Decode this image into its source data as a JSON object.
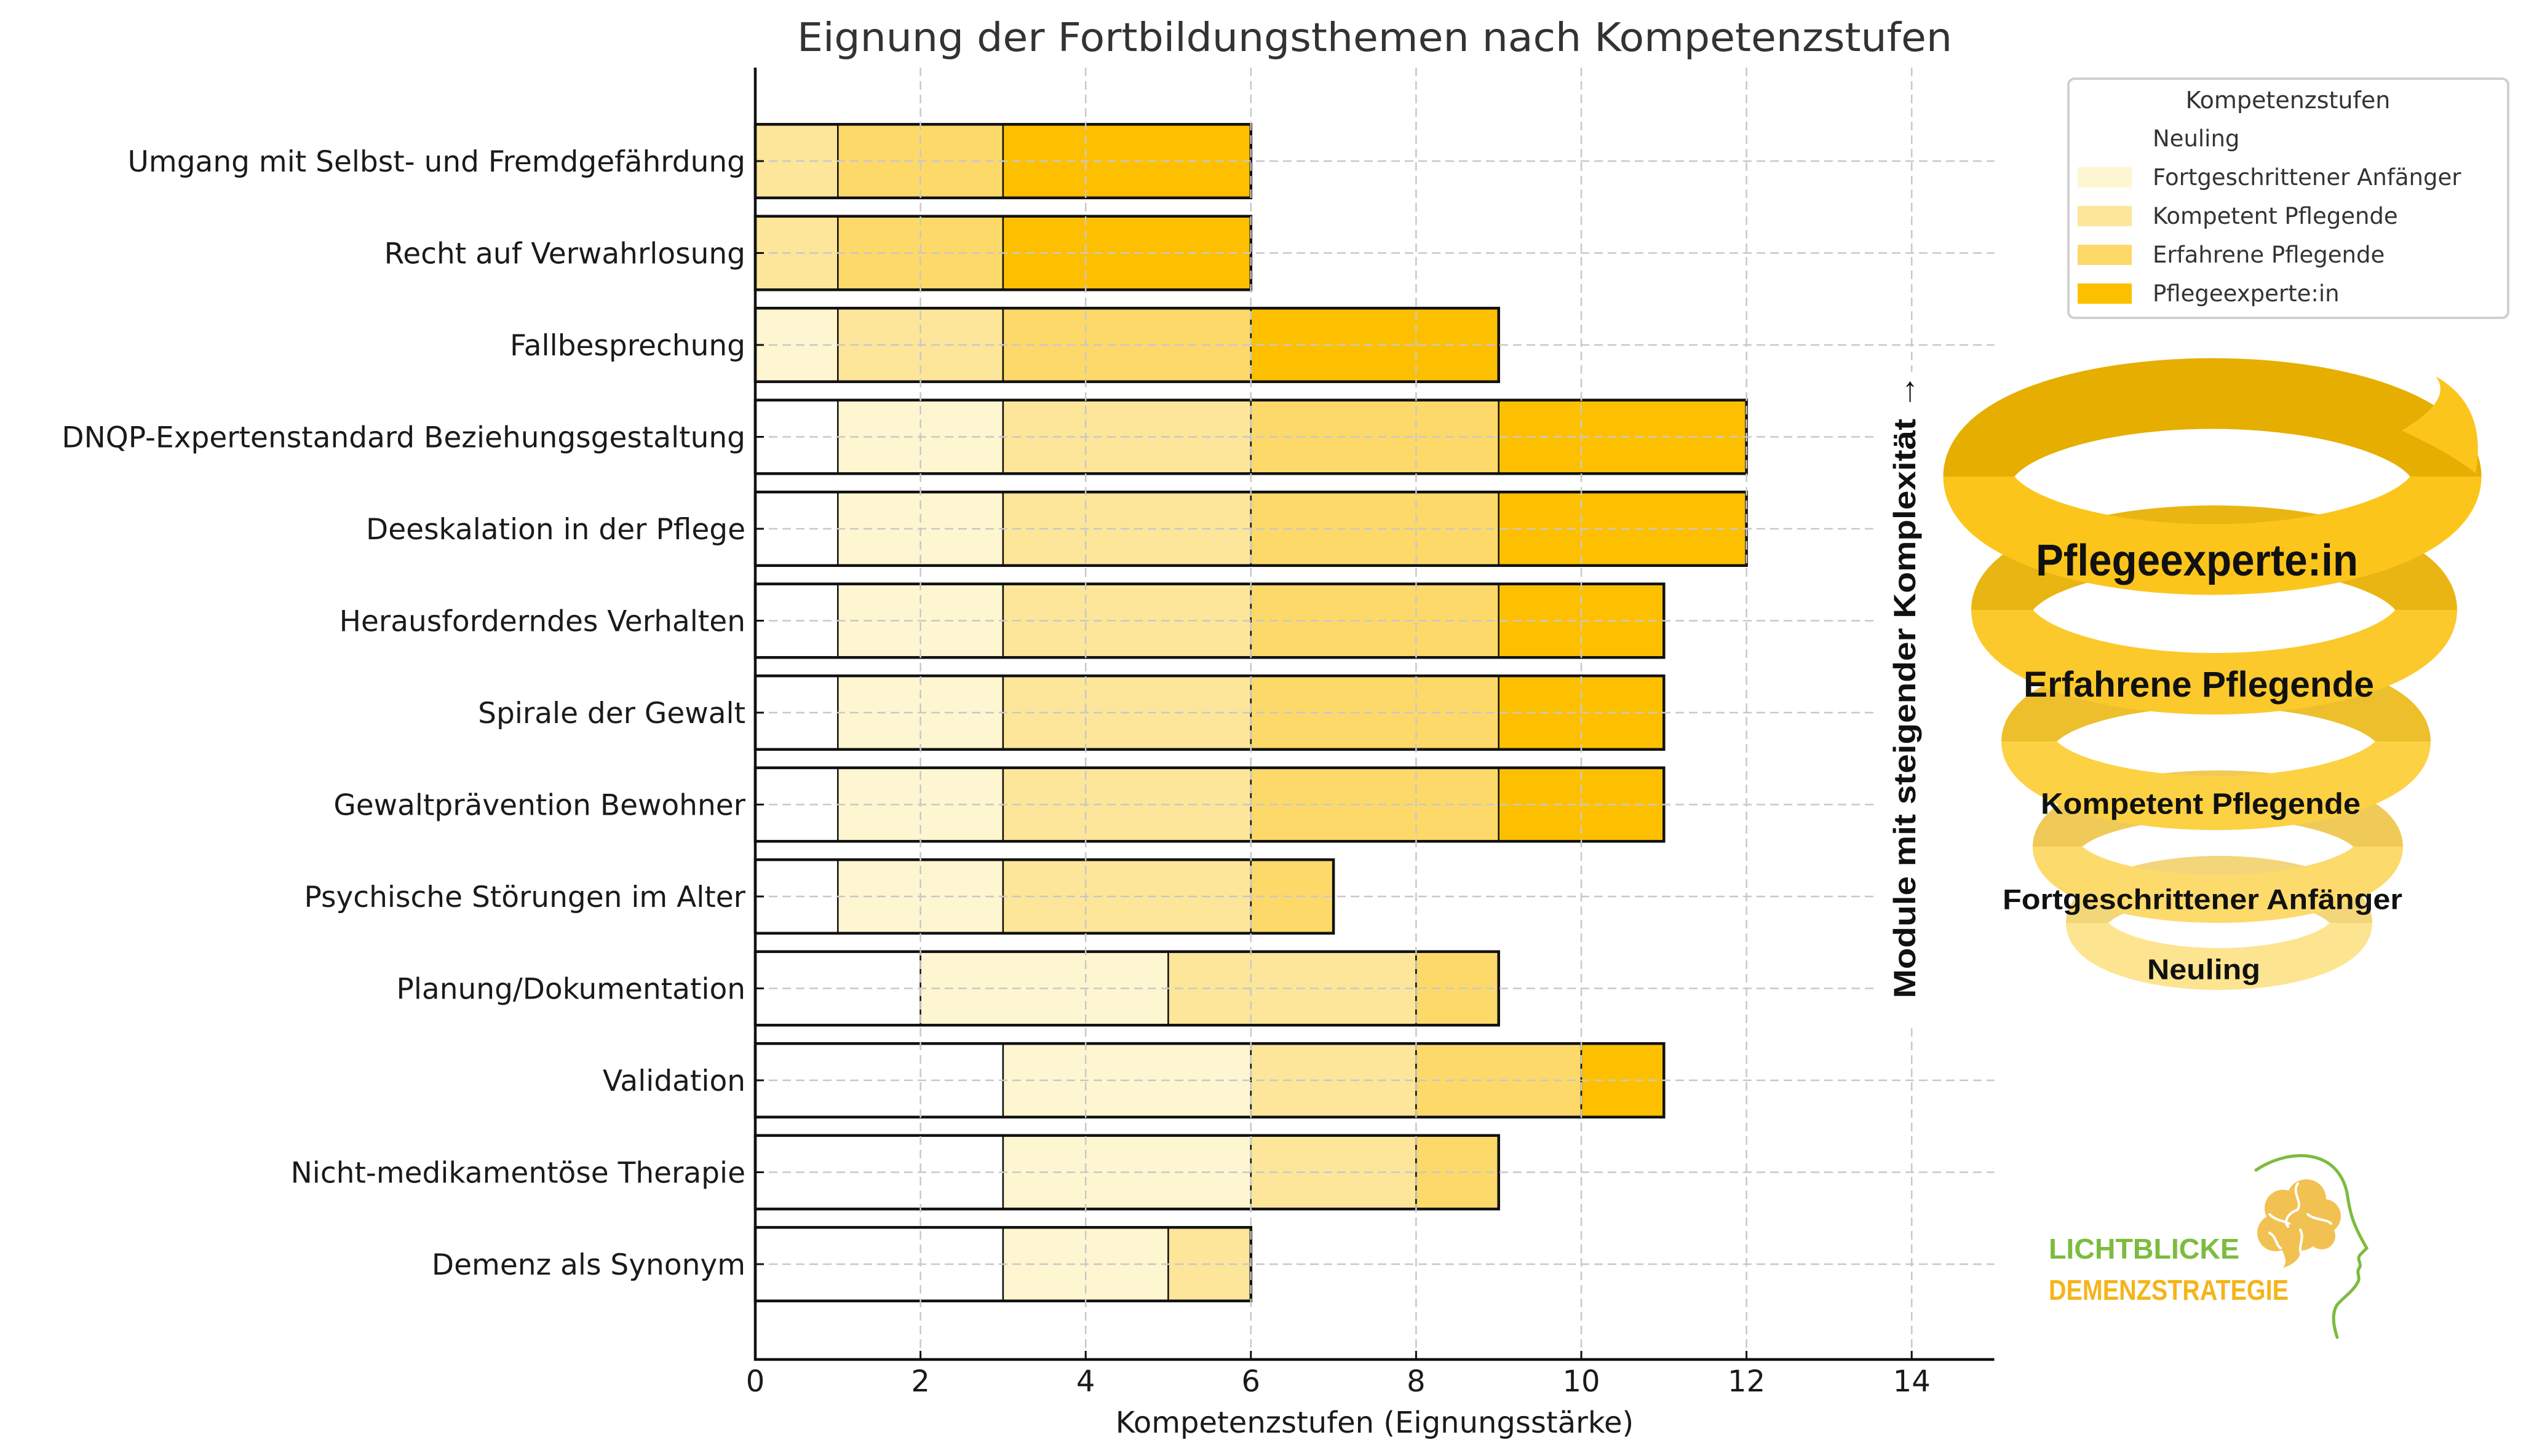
{
  "chart_data": {
    "type": "bar",
    "orientation": "horizontal",
    "stacked": true,
    "title": "Eignung der Fortbildungsthemen nach Kompetenzstufen",
    "xlabel": "Kompetenzstufen (Eignungsstärke)",
    "xlim": [
      0,
      15
    ],
    "xticks": [
      0,
      2,
      4,
      6,
      8,
      10,
      12,
      14
    ],
    "grid": true,
    "legend": {
      "title": "Kompetenzstufen",
      "position": "upper-right"
    },
    "categories": [
      "Umgang mit Selbst- und Fremdgefährdung",
      "Recht auf Verwahrlosung",
      "Fallbesprechung",
      "DNQP-Expertenstandard Beziehungsgestaltung",
      "Deeskalation in der Pflege",
      "Herausforderndes Verhalten",
      "Spirale der Gewalt",
      "Gewaltprävention Bewohner",
      "Psychische Störungen im Alter",
      "Planung/Dokumentation",
      "Validation",
      "Nicht-medikamentöse Therapie",
      "Demenz als Synonym"
    ],
    "series": [
      {
        "name": "Neuling",
        "color": "#FFFFFF",
        "values": [
          0,
          0,
          0,
          1,
          1,
          1,
          1,
          1,
          1,
          2,
          3,
          3,
          3
        ]
      },
      {
        "name": "Fortgeschrittener Anfänger",
        "color": "#FEF6D0",
        "values": [
          0,
          0,
          1,
          2,
          2,
          2,
          2,
          2,
          2,
          3,
          3,
          3,
          2
        ]
      },
      {
        "name": "Kompetent Pflegende",
        "color": "#FDE69A",
        "values": [
          1,
          1,
          2,
          3,
          3,
          3,
          3,
          3,
          3,
          3,
          2,
          2,
          1
        ]
      },
      {
        "name": "Erfahrene Pflegende",
        "color": "#FDD96A",
        "values": [
          2,
          2,
          3,
          3,
          3,
          3,
          3,
          3,
          1,
          1,
          2,
          1,
          0
        ]
      },
      {
        "name": "Pflegeexperte:in",
        "color": "#FDC000",
        "values": [
          3,
          3,
          3,
          3,
          3,
          2,
          2,
          2,
          0,
          0,
          1,
          0,
          0
        ]
      }
    ]
  },
  "side_label": "Module mit steigender Komplexität →",
  "spiral": {
    "labels": [
      "Pflegeexperte:in",
      "Erfahrene Pflegende",
      "Kompetent Pflegende",
      "Fortgeschrittener Anfänger",
      "Neuling"
    ]
  },
  "logo": {
    "line1": "LICHTBLICKE",
    "line2": "DEMENZSTRATEGIE",
    "colors": {
      "green": "#7DBB3F",
      "orange": "#F5B41A",
      "brain": "#F1C152"
    }
  }
}
